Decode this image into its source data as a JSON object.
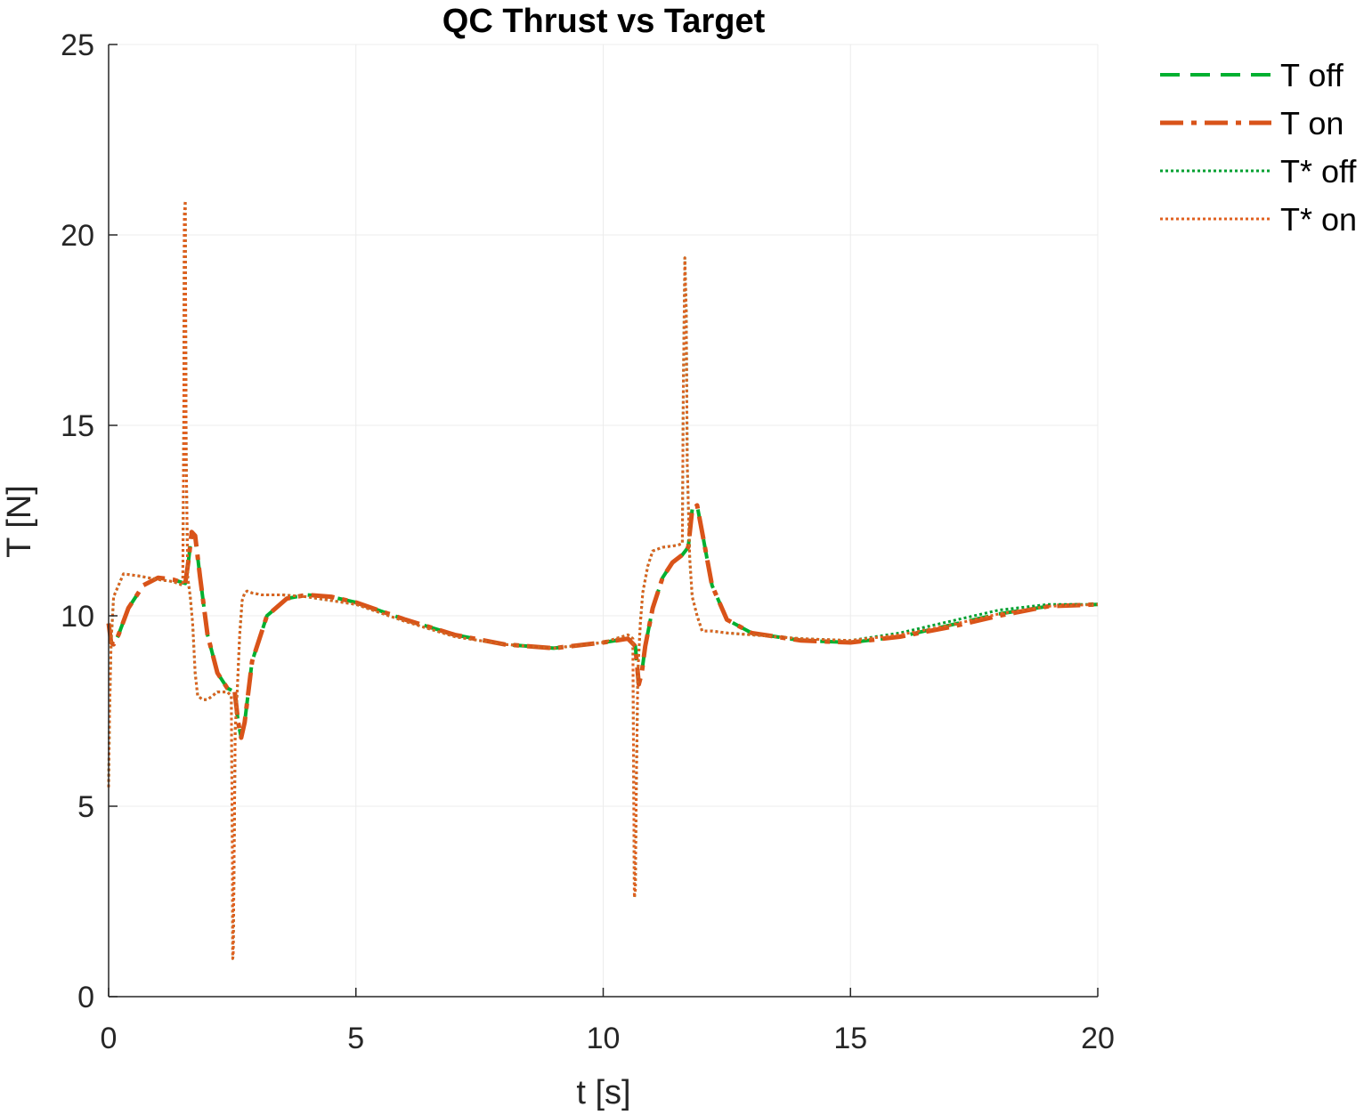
{
  "chart_data": {
    "type": "line",
    "title": "QC Thrust vs Target",
    "xlabel": "t [s]",
    "ylabel": "T [N]",
    "xlim": [
      0,
      20
    ],
    "ylim": [
      0,
      25
    ],
    "xticks": [
      0,
      5,
      10,
      15,
      20
    ],
    "yticks": [
      0,
      5,
      10,
      15,
      20,
      25
    ],
    "grid": true,
    "legend_position": "top-right-outside",
    "series": [
      {
        "name": "T off",
        "color": "#00b030",
        "style": "dashed",
        "x": [
          0,
          0.05,
          0.1,
          0.2,
          0.4,
          0.7,
          1.0,
          1.3,
          1.55,
          1.62,
          1.68,
          1.75,
          1.85,
          2.0,
          2.2,
          2.4,
          2.55,
          2.62,
          2.68,
          2.75,
          2.9,
          3.2,
          3.6,
          4.0,
          4.5,
          5.0,
          6.0,
          7.0,
          8.0,
          9.0,
          10.0,
          10.5,
          10.65,
          10.72,
          10.78,
          10.85,
          11.0,
          11.2,
          11.4,
          11.6,
          11.72,
          11.8,
          11.9,
          12.0,
          12.2,
          12.5,
          13.0,
          14.0,
          15.0,
          16.0,
          17.0,
          18.0,
          19.0,
          20.0
        ],
        "y": [
          9.8,
          9.3,
          9.25,
          9.5,
          10.2,
          10.8,
          11.0,
          10.95,
          10.85,
          11.5,
          12.2,
          12.1,
          11.0,
          9.5,
          8.5,
          8.1,
          8.0,
          7.2,
          6.8,
          7.2,
          8.8,
          10.0,
          10.45,
          10.55,
          10.5,
          10.35,
          9.9,
          9.5,
          9.25,
          9.15,
          9.3,
          9.4,
          9.2,
          8.2,
          8.5,
          9.2,
          10.2,
          11.0,
          11.4,
          11.6,
          11.8,
          12.8,
          12.9,
          12.2,
          10.8,
          9.9,
          9.55,
          9.35,
          9.3,
          9.45,
          9.75,
          10.05,
          10.25,
          10.3
        ]
      },
      {
        "name": "T on",
        "color": "#d95319",
        "style": "dashdot",
        "x": [
          0,
          0.05,
          0.1,
          0.2,
          0.4,
          0.7,
          1.0,
          1.3,
          1.55,
          1.62,
          1.68,
          1.75,
          1.85,
          2.0,
          2.2,
          2.4,
          2.55,
          2.62,
          2.68,
          2.75,
          2.9,
          3.2,
          3.6,
          4.0,
          4.5,
          5.0,
          6.0,
          7.0,
          8.0,
          9.0,
          10.0,
          10.5,
          10.65,
          10.72,
          10.78,
          10.85,
          11.0,
          11.2,
          11.4,
          11.6,
          11.72,
          11.8,
          11.9,
          12.0,
          12.2,
          12.5,
          13.0,
          14.0,
          15.0,
          16.0,
          17.0,
          18.0,
          19.0,
          20.0
        ],
        "y": [
          9.8,
          9.3,
          9.25,
          9.5,
          10.2,
          10.8,
          11.0,
          10.95,
          10.85,
          11.5,
          12.2,
          12.1,
          11.0,
          9.5,
          8.5,
          8.1,
          8.0,
          7.2,
          6.8,
          7.2,
          8.8,
          10.0,
          10.45,
          10.55,
          10.5,
          10.35,
          9.9,
          9.5,
          9.25,
          9.15,
          9.3,
          9.4,
          9.2,
          8.2,
          8.5,
          9.2,
          10.2,
          11.0,
          11.4,
          11.6,
          11.8,
          12.8,
          12.9,
          12.2,
          10.8,
          9.9,
          9.55,
          9.35,
          9.3,
          9.45,
          9.7,
          10.0,
          10.25,
          10.3
        ]
      },
      {
        "name": "T* off",
        "color": "#00a030",
        "style": "dotted",
        "x": [
          0,
          0.02,
          0.05,
          0.1,
          0.3,
          0.6,
          1.0,
          1.3,
          1.5,
          1.52,
          1.53,
          1.55,
          1.57,
          1.6,
          1.65,
          1.7,
          1.75,
          1.8,
          1.9,
          2.0,
          2.2,
          2.4,
          2.48,
          2.5,
          2.51,
          2.52,
          2.54,
          2.56,
          2.6,
          2.65,
          2.7,
          2.75,
          2.8,
          2.9,
          3.1,
          3.5,
          4.0,
          5.0,
          6.0,
          7.0,
          8.0,
          9.0,
          10.0,
          10.5,
          10.6,
          10.62,
          10.63,
          10.65,
          10.67,
          10.7,
          10.75,
          10.8,
          10.9,
          11.0,
          11.2,
          11.5,
          11.6,
          11.62,
          11.65,
          11.68,
          11.7,
          11.75,
          11.8,
          11.9,
          12.0,
          12.1,
          12.2,
          12.5,
          13.0,
          14.0,
          15.0,
          16.0,
          17.0,
          18.0,
          19.0,
          20.0
        ],
        "y": [
          5.5,
          7.5,
          9.3,
          10.5,
          11.1,
          11.05,
          10.95,
          10.9,
          10.8,
          15.0,
          20.5,
          20.9,
          14.0,
          11.0,
          10.5,
          9.8,
          8.5,
          7.9,
          7.8,
          7.8,
          8.0,
          8.0,
          7.9,
          4.0,
          1.0,
          1.1,
          4.0,
          7.0,
          8.0,
          9.5,
          10.4,
          10.6,
          10.65,
          10.6,
          10.55,
          10.55,
          10.5,
          10.3,
          9.85,
          9.45,
          9.25,
          9.15,
          9.3,
          9.5,
          9.4,
          5.0,
          2.6,
          2.8,
          5.5,
          8.5,
          9.8,
          10.6,
          11.3,
          11.7,
          11.8,
          11.85,
          11.9,
          16.0,
          19.4,
          18.0,
          14.0,
          11.5,
          10.5,
          10.0,
          9.6,
          9.6,
          9.6,
          9.55,
          9.5,
          9.4,
          9.35,
          9.55,
          9.85,
          10.15,
          10.3,
          10.3
        ]
      },
      {
        "name": "T* on",
        "color": "#e06020",
        "style": "dotted",
        "x": [
          0,
          0.02,
          0.05,
          0.1,
          0.3,
          0.6,
          1.0,
          1.3,
          1.5,
          1.52,
          1.53,
          1.55,
          1.57,
          1.6,
          1.65,
          1.7,
          1.75,
          1.8,
          1.9,
          2.0,
          2.2,
          2.4,
          2.48,
          2.5,
          2.51,
          2.52,
          2.54,
          2.56,
          2.6,
          2.65,
          2.7,
          2.75,
          2.8,
          2.9,
          3.1,
          3.5,
          4.0,
          5.0,
          6.0,
          7.0,
          8.0,
          9.0,
          10.0,
          10.5,
          10.6,
          10.62,
          10.63,
          10.65,
          10.67,
          10.7,
          10.75,
          10.8,
          10.9,
          11.0,
          11.2,
          11.5,
          11.6,
          11.62,
          11.65,
          11.68,
          11.7,
          11.75,
          11.8,
          11.9,
          12.0,
          12.1,
          12.2,
          12.5,
          13.0,
          14.0,
          15.0,
          16.0,
          17.0,
          18.0,
          19.0,
          20.0
        ],
        "y": [
          5.5,
          7.5,
          9.3,
          10.5,
          11.1,
          11.05,
          10.95,
          10.9,
          10.8,
          15.0,
          20.5,
          20.9,
          14.0,
          11.0,
          10.5,
          9.8,
          8.5,
          7.9,
          7.8,
          7.8,
          8.0,
          8.0,
          7.9,
          4.0,
          1.0,
          1.1,
          4.0,
          7.0,
          8.0,
          9.5,
          10.4,
          10.6,
          10.65,
          10.6,
          10.55,
          10.55,
          10.5,
          10.3,
          9.85,
          9.45,
          9.25,
          9.15,
          9.3,
          9.5,
          9.4,
          5.0,
          2.6,
          2.8,
          5.5,
          8.5,
          9.8,
          10.6,
          11.3,
          11.7,
          11.8,
          11.85,
          11.9,
          16.0,
          19.4,
          18.0,
          14.0,
          11.5,
          10.5,
          10.0,
          9.6,
          9.6,
          9.6,
          9.55,
          9.5,
          9.4,
          9.35,
          9.5,
          9.75,
          10.05,
          10.25,
          10.3
        ]
      }
    ]
  }
}
